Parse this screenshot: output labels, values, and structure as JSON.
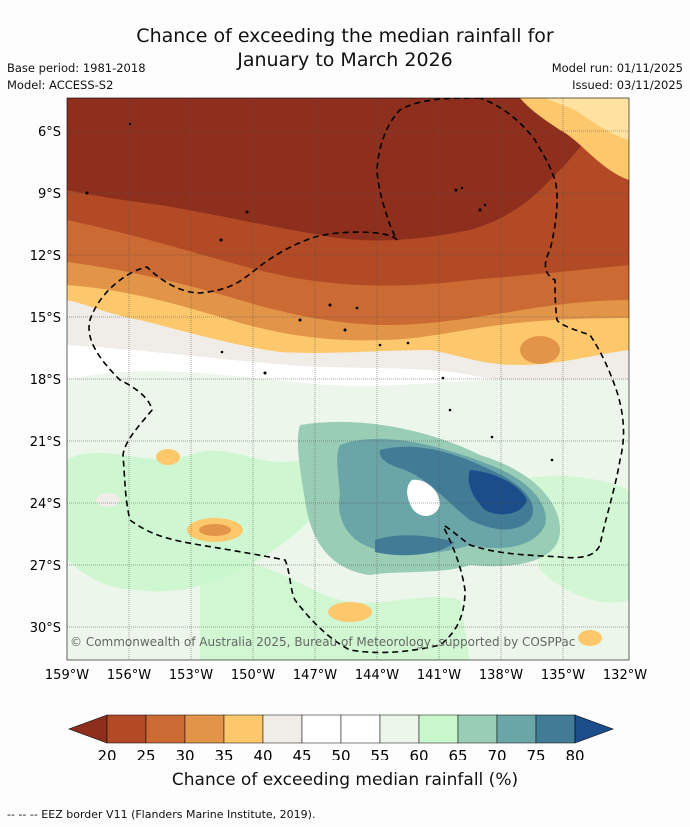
{
  "title_line1": "Chance of exceeding the median rainfall for",
  "title_line2": "January to March 2026",
  "base_period": "Base period: 1981-2018",
  "model": "Model: ACCESS-S2",
  "model_run": "Model run: 01/11/2025",
  "issued": "Issued: 03/11/2025",
  "copyright": "© Commonwealth of Australia 2025, Bureau of Meteorology, supported by COSPPac",
  "lat_labels": [
    "6°S",
    "9°S",
    "12°S",
    "15°S",
    "18°S",
    "21°S",
    "24°S",
    "27°S",
    "30°S"
  ],
  "lon_labels": [
    "159°W",
    "156°W",
    "153°W",
    "150°W",
    "147°W",
    "144°W",
    "141°W",
    "138°W",
    "135°W",
    "132°W"
  ],
  "colorbar": {
    "label": "Chance of exceeding median rainfall (%)",
    "ticks": [
      "20",
      "25",
      "30",
      "35",
      "40",
      "45",
      "50",
      "55",
      "60",
      "65",
      "70",
      "75",
      "80"
    ],
    "colors": [
      "#8e2f1d",
      "#b24a25",
      "#cb6a32",
      "#e29548",
      "#fdc86c",
      "#f0ece7",
      "#ffffff",
      "#ffffff",
      "#ecf6ea",
      "#c9f7cc",
      "#99cdb5",
      "#6aa5a8",
      "#427b96",
      "#1a4d8a"
    ]
  },
  "footer": "--  --  -- EEZ border V11 (Flanders Marine Institute, 2019)."
}
